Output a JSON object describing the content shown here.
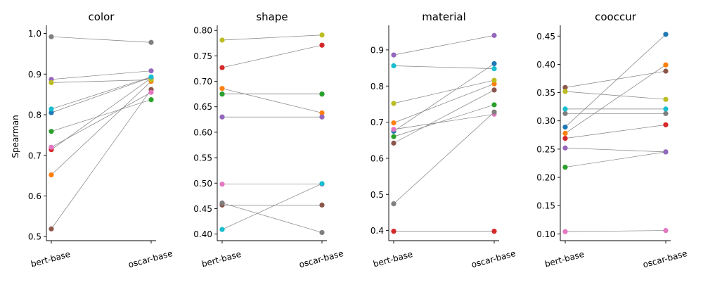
{
  "y_axis_label": "Spearman",
  "palette": [
    "#1f77b4",
    "#ff7f0e",
    "#2ca02c",
    "#d62728",
    "#9467bd",
    "#8c564b",
    "#e377c2",
    "#7f7f7f",
    "#bcbd22",
    "#17becf"
  ],
  "connector_color": "#808080",
  "chart_data": [
    {
      "type": "line",
      "title": "color",
      "ylabel": "Spearman",
      "categories": [
        "bert-base",
        "oscar-base"
      ],
      "ylim": [
        0.49,
        1.02
      ],
      "ticks": [
        "0.5",
        "0.6",
        "0.7",
        "0.8",
        "0.9",
        "1.0"
      ],
      "series": [
        {
          "color": "#1f77b4",
          "values": [
            0.805,
            0.892
          ]
        },
        {
          "color": "#ff7f0e",
          "values": [
            0.652,
            0.882
          ]
        },
        {
          "color": "#2ca02c",
          "values": [
            0.759,
            0.837
          ]
        },
        {
          "color": "#d62728",
          "values": [
            0.714,
            0.89
          ]
        },
        {
          "color": "#9467bd",
          "values": [
            0.887,
            0.908
          ]
        },
        {
          "color": "#8c564b",
          "values": [
            0.519,
            0.862
          ]
        },
        {
          "color": "#e377c2",
          "values": [
            0.72,
            0.855
          ]
        },
        {
          "color": "#7f7f7f",
          "values": [
            0.992,
            0.978
          ]
        },
        {
          "color": "#bcbd22",
          "values": [
            0.879,
            0.886
          ]
        },
        {
          "color": "#17becf",
          "values": [
            0.814,
            0.893
          ]
        }
      ]
    },
    {
      "type": "line",
      "title": "shape",
      "ylabel": "",
      "categories": [
        "bert-base",
        "oscar-base"
      ],
      "ylim": [
        0.387,
        0.81
      ],
      "ticks": [
        "0.40",
        "0.45",
        "0.50",
        "0.55",
        "0.60",
        "0.65",
        "0.70",
        "0.75",
        "0.80"
      ],
      "series": [
        {
          "color": "#1f77b4",
          "values": [
            0.675,
            0.675
          ]
        },
        {
          "color": "#ff7f0e",
          "values": [
            0.686,
            0.638
          ]
        },
        {
          "color": "#2ca02c",
          "values": [
            0.675,
            0.675
          ]
        },
        {
          "color": "#d62728",
          "values": [
            0.727,
            0.771
          ]
        },
        {
          "color": "#9467bd",
          "values": [
            0.63,
            0.63
          ]
        },
        {
          "color": "#8c564b",
          "values": [
            0.457,
            0.457
          ]
        },
        {
          "color": "#e377c2",
          "values": [
            0.498,
            0.498
          ]
        },
        {
          "color": "#7f7f7f",
          "values": [
            0.461,
            0.403
          ]
        },
        {
          "color": "#bcbd22",
          "values": [
            0.781,
            0.791
          ]
        },
        {
          "color": "#17becf",
          "values": [
            0.409,
            0.499
          ]
        }
      ]
    },
    {
      "type": "line",
      "title": "material",
      "ylabel": "",
      "categories": [
        "bert-base",
        "oscar-base"
      ],
      "ylim": [
        0.372,
        0.968
      ],
      "ticks": [
        "0.4",
        "0.5",
        "0.6",
        "0.7",
        "0.8",
        "0.9"
      ],
      "series": [
        {
          "color": "#1f77b4",
          "values": [
            0.675,
            0.862
          ]
        },
        {
          "color": "#ff7f0e",
          "values": [
            0.698,
            0.806
          ]
        },
        {
          "color": "#2ca02c",
          "values": [
            0.66,
            0.748
          ]
        },
        {
          "color": "#d62728",
          "values": [
            0.398,
            0.398
          ]
        },
        {
          "color": "#9467bd",
          "values": [
            0.886,
            0.94
          ]
        },
        {
          "color": "#8c564b",
          "values": [
            0.642,
            0.789
          ]
        },
        {
          "color": "#e377c2",
          "values": [
            0.68,
            0.722
          ]
        },
        {
          "color": "#7f7f7f",
          "values": [
            0.474,
            0.728
          ]
        },
        {
          "color": "#bcbd22",
          "values": [
            0.752,
            0.816
          ]
        },
        {
          "color": "#17becf",
          "values": [
            0.856,
            0.848
          ]
        }
      ]
    },
    {
      "type": "line",
      "title": "cooccur",
      "ylabel": "",
      "categories": [
        "bert-base",
        "oscar-base"
      ],
      "ylim": [
        0.088,
        0.469
      ],
      "ticks": [
        "0.10",
        "0.15",
        "0.20",
        "0.25",
        "0.30",
        "0.35",
        "0.40",
        "0.45"
      ],
      "series": [
        {
          "color": "#1f77b4",
          "values": [
            0.289,
            0.453
          ]
        },
        {
          "color": "#ff7f0e",
          "values": [
            0.278,
            0.399
          ]
        },
        {
          "color": "#2ca02c",
          "values": [
            0.218,
            0.245
          ]
        },
        {
          "color": "#d62728",
          "values": [
            0.269,
            0.293
          ]
        },
        {
          "color": "#9467bd",
          "values": [
            0.252,
            0.245
          ]
        },
        {
          "color": "#8c564b",
          "values": [
            0.359,
            0.388
          ]
        },
        {
          "color": "#e377c2",
          "values": [
            0.104,
            0.106
          ]
        },
        {
          "color": "#7f7f7f",
          "values": [
            0.313,
            0.313
          ]
        },
        {
          "color": "#bcbd22",
          "values": [
            0.352,
            0.338
          ]
        },
        {
          "color": "#17becf",
          "values": [
            0.321,
            0.321
          ]
        }
      ]
    }
  ]
}
